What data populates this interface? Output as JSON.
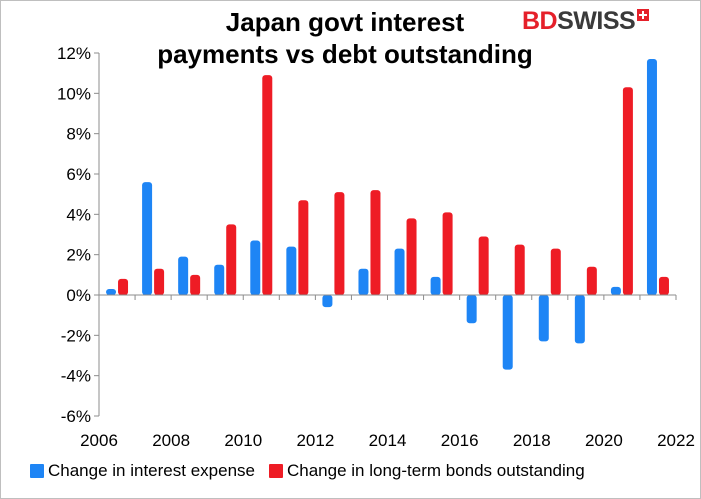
{
  "chart_data": {
    "type": "bar",
    "title": [
      "Japan govt interest",
      "payments vs debt outstanding"
    ],
    "logo": {
      "part1": "BD",
      "part2": "SWISS"
    },
    "x": [
      2006,
      2007,
      2008,
      2009,
      2010,
      2011,
      2012,
      2013,
      2014,
      2015,
      2016,
      2017,
      2018,
      2019,
      2020,
      2021
    ],
    "x_ticks": [
      "2006",
      "2008",
      "2010",
      "2012",
      "2014",
      "2016",
      "2018",
      "2020",
      "2022"
    ],
    "x_tick_values": [
      2006,
      2008,
      2010,
      2012,
      2014,
      2016,
      2018,
      2020,
      2022
    ],
    "xlim": [
      2006,
      2022
    ],
    "y_ticks": [
      "12%",
      "10%",
      "8%",
      "6%",
      "4%",
      "2%",
      "0%",
      "-2%",
      "-4%",
      "-6%"
    ],
    "y_tick_values": [
      12,
      10,
      8,
      6,
      4,
      2,
      0,
      -2,
      -4,
      -6
    ],
    "ylim": [
      -6,
      12
    ],
    "grid": false,
    "legend_position": "bottom",
    "series": [
      {
        "name": "Change in interest expense",
        "color": "#1e85f5",
        "values": [
          0.3,
          5.6,
          1.9,
          1.5,
          2.7,
          2.4,
          -0.6,
          1.3,
          2.3,
          0.9,
          -1.4,
          -3.7,
          -2.3,
          -2.4,
          0.4,
          11.7
        ]
      },
      {
        "name": "Change in long-term bonds outstanding",
        "color": "#ee1c25",
        "values": [
          0.8,
          1.3,
          1.0,
          3.5,
          10.9,
          4.7,
          5.1,
          5.2,
          3.8,
          4.1,
          2.9,
          2.5,
          2.3,
          1.4,
          10.3,
          0.9
        ]
      }
    ]
  }
}
